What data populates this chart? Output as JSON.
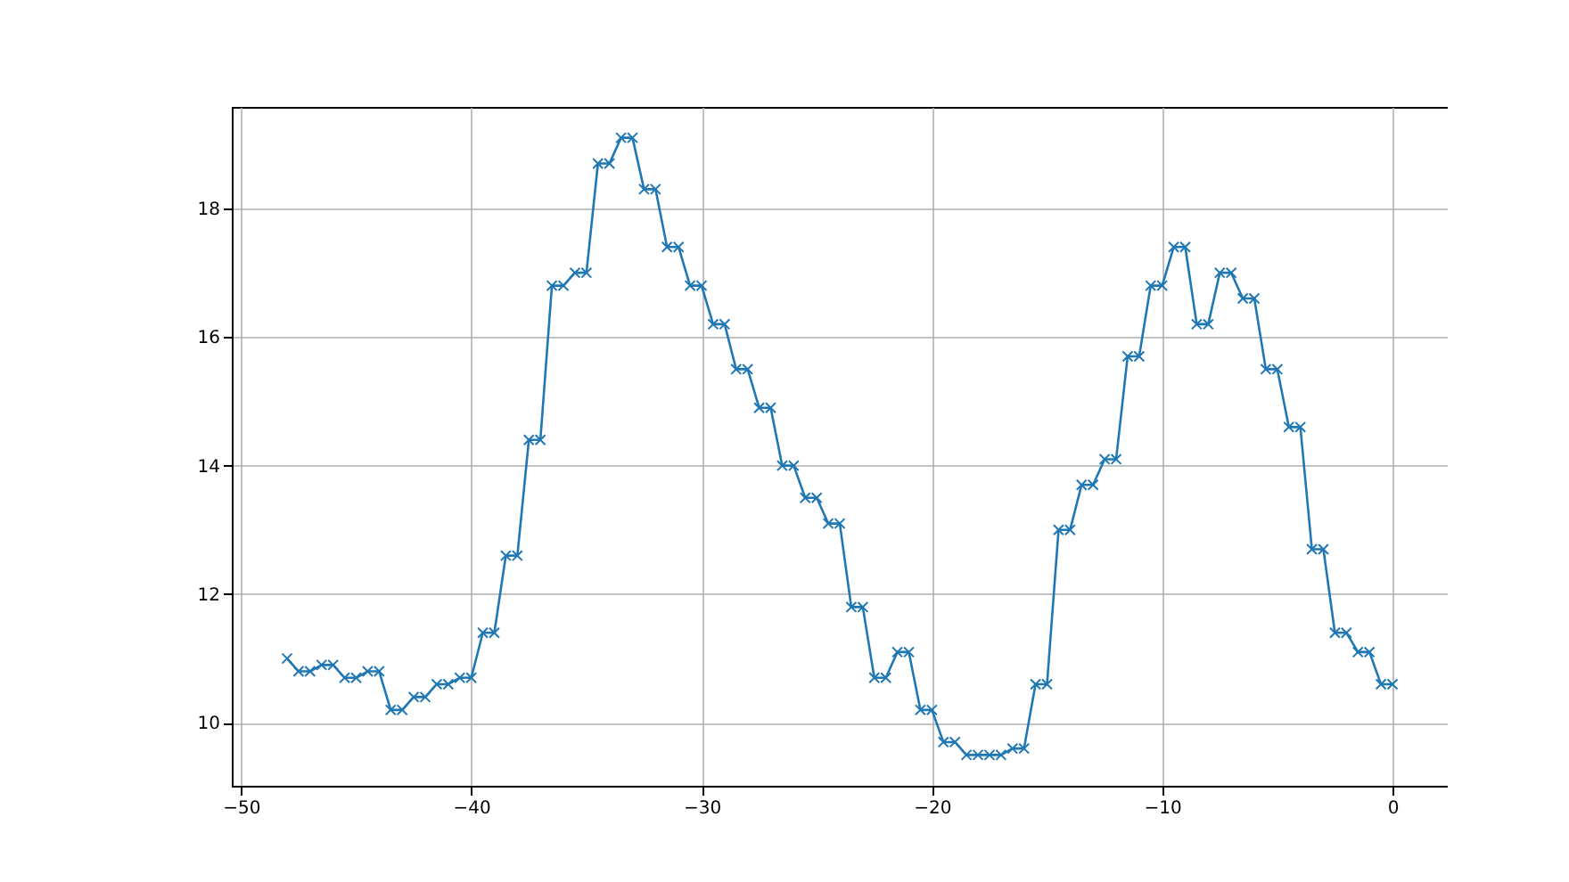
{
  "chart_data": {
    "type": "line",
    "marker": "cross",
    "grid": true,
    "x": [
      -48,
      -47.5,
      -47,
      -46.5,
      -46,
      -45.5,
      -45,
      -44.5,
      -44,
      -43.5,
      -43,
      -42.5,
      -42,
      -41.5,
      -41,
      -40.5,
      -40,
      -39.5,
      -39,
      -38.5,
      -38,
      -37.5,
      -37,
      -36.5,
      -36,
      -35.5,
      -35,
      -34.5,
      -34,
      -33.5,
      -33,
      -32.5,
      -32,
      -31.5,
      -31,
      -30.5,
      -30,
      -29.5,
      -29,
      -28.5,
      -28,
      -27.5,
      -27,
      -26.5,
      -26,
      -25.5,
      -25,
      -24.5,
      -24,
      -23.5,
      -23,
      -22.5,
      -22,
      -21.5,
      -21,
      -20.5,
      -20,
      -19.5,
      -19,
      -18.5,
      -18,
      -17.5,
      -17,
      -16.5,
      -16,
      -15.5,
      -15,
      -14.5,
      -14,
      -13.5,
      -13,
      -12.5,
      -12,
      -11.5,
      -11,
      -10.5,
      -10,
      -9.5,
      -9,
      -8.5,
      -8,
      -7.5,
      -7,
      -6.5,
      -6,
      -5.5,
      -5,
      -4.5,
      -4,
      -3.5,
      -3,
      -2.5,
      -2,
      -1.5,
      -1,
      -0.5,
      0
    ],
    "series": [
      {
        "color": "#1f77b4",
        "values": [
          11.0,
          10.8,
          10.8,
          10.9,
          10.9,
          10.7,
          10.7,
          10.8,
          10.8,
          10.2,
          10.2,
          10.4,
          10.4,
          10.6,
          10.6,
          10.7,
          10.7,
          11.4,
          11.4,
          12.6,
          12.6,
          14.4,
          14.4,
          16.8,
          16.8,
          17.0,
          17.0,
          18.7,
          18.7,
          19.1,
          19.1,
          18.3,
          18.3,
          17.4,
          17.4,
          16.8,
          16.8,
          16.2,
          16.2,
          15.5,
          15.5,
          14.9,
          14.9,
          14.0,
          14.0,
          13.5,
          13.5,
          13.1,
          13.1,
          11.8,
          11.8,
          10.7,
          10.7,
          11.1,
          11.1,
          10.2,
          10.2,
          9.7,
          9.7,
          9.5,
          9.5,
          9.5,
          9.5,
          9.6,
          9.6,
          10.6,
          10.6,
          13.0,
          13.0,
          13.7,
          13.7,
          14.1,
          14.1,
          15.7,
          15.7,
          16.8,
          16.8,
          17.4,
          17.4,
          16.2,
          16.2,
          17.0,
          17.0,
          16.6,
          16.6,
          15.5,
          15.5,
          14.6,
          14.6,
          12.7,
          12.7,
          11.4,
          11.4,
          11.1,
          11.1,
          10.6,
          10.6
        ]
      }
    ],
    "xlim": [
      -50.4,
      2.4
    ],
    "ylim": [
      9.02,
      19.58
    ],
    "xticks": [
      {
        "value": -50,
        "label": "−50"
      },
      {
        "value": -40,
        "label": "−40"
      },
      {
        "value": -30,
        "label": "−30"
      },
      {
        "value": -20,
        "label": "−20"
      },
      {
        "value": -10,
        "label": "−10"
      },
      0
    ],
    "yticks": [
      10,
      12,
      14,
      16,
      18
    ]
  }
}
